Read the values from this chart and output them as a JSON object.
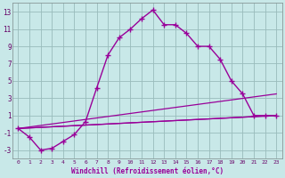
{
  "xlabel": "Windchill (Refroidissement éolien,°C)",
  "background_color": "#c8e8e8",
  "line_color": "#990099",
  "grid_color": "#99bbbb",
  "xlim": [
    -0.5,
    23.5
  ],
  "ylim": [
    -4.0,
    14.0
  ],
  "yticks": [
    -3,
    -1,
    1,
    3,
    5,
    7,
    9,
    11,
    13
  ],
  "xticks": [
    0,
    1,
    2,
    3,
    4,
    5,
    6,
    7,
    8,
    9,
    10,
    11,
    12,
    13,
    14,
    15,
    16,
    17,
    18,
    19,
    20,
    21,
    22,
    23
  ],
  "main_series": {
    "x": [
      0,
      1,
      2,
      3,
      4,
      5,
      6,
      7,
      8,
      9,
      10,
      11,
      12,
      13,
      14,
      15,
      16,
      17,
      18,
      19,
      20,
      21,
      22,
      23
    ],
    "y": [
      -0.5,
      -1.5,
      -3.0,
      -2.8,
      -2.0,
      -1.2,
      0.3,
      4.2,
      8.0,
      10.0,
      11.0,
      12.2,
      13.2,
      11.5,
      11.5,
      10.5,
      9.0,
      9.0,
      7.5,
      5.0,
      3.5,
      1.0,
      1.0,
      1.0
    ]
  },
  "straight_lines": [
    {
      "x": [
        0,
        23
      ],
      "y": [
        -0.5,
        1.0
      ]
    },
    {
      "x": [
        0,
        23
      ],
      "y": [
        -0.5,
        3.5
      ]
    },
    {
      "x": [
        0,
        23
      ],
      "y": [
        -0.5,
        1.0
      ]
    }
  ]
}
